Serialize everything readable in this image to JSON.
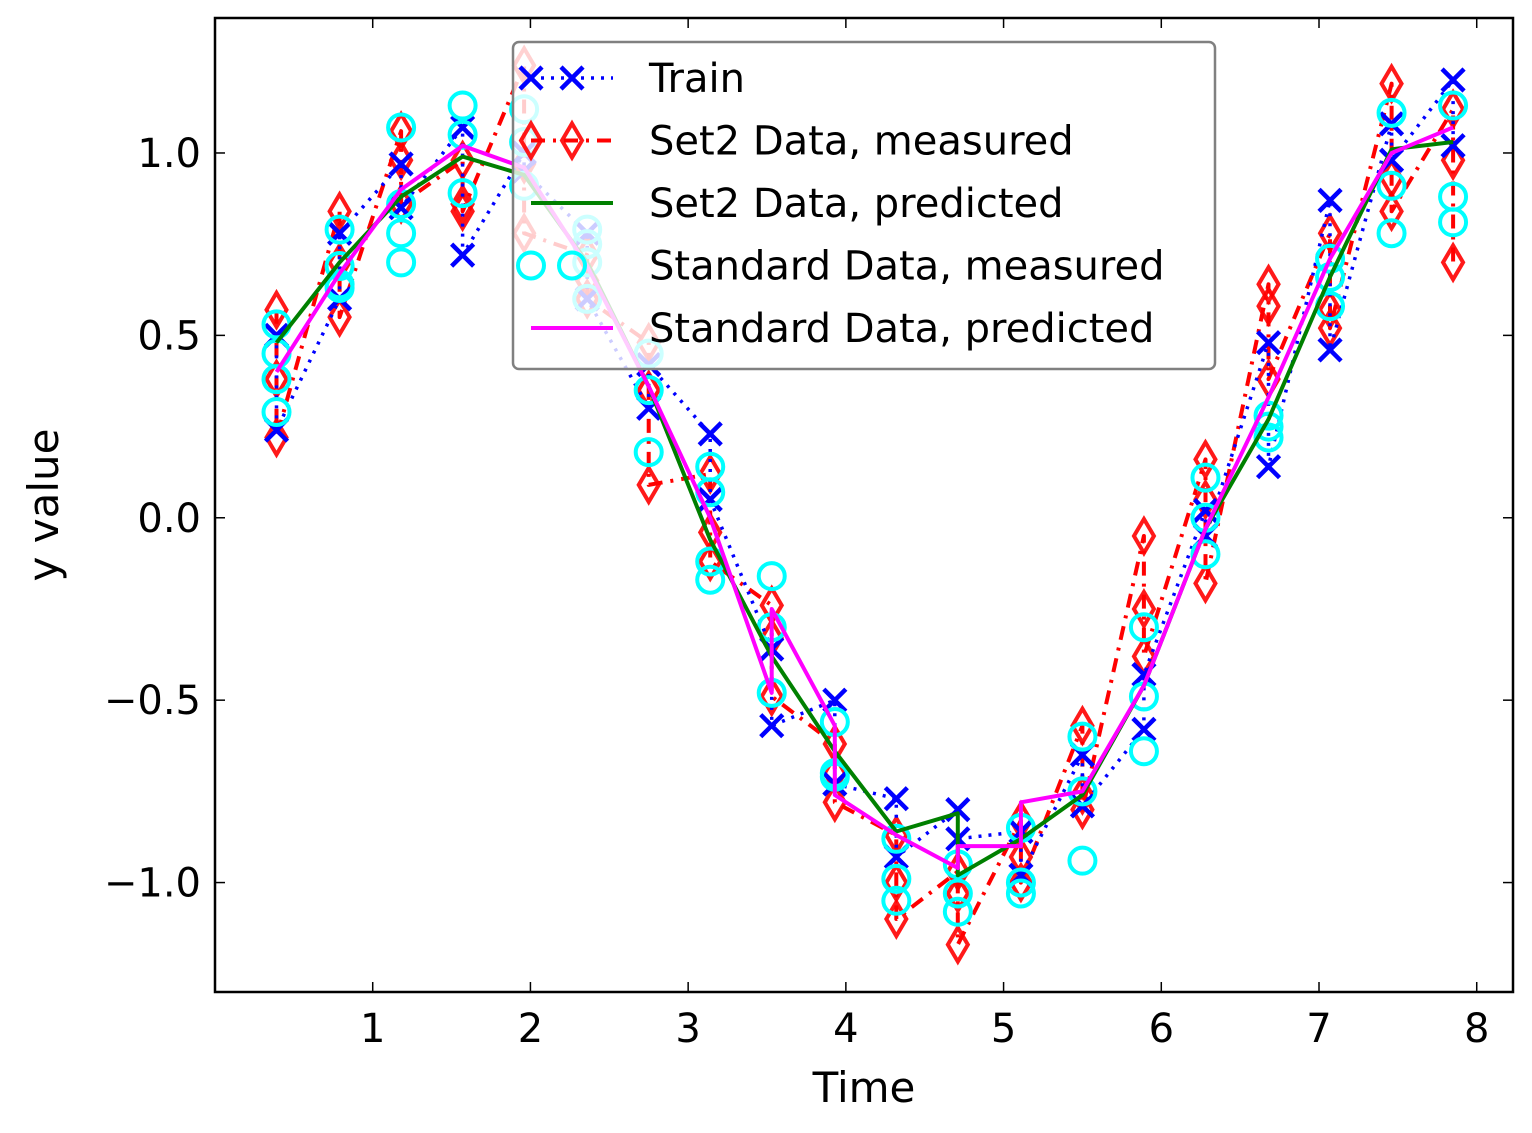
{
  "chart_data": {
    "type": "line",
    "xlabel": "Time",
    "ylabel": "y value",
    "xlim": [
      0.0,
      8.23
    ],
    "ylim": [
      -1.3,
      1.37
    ],
    "x_ticks": [
      1,
      2,
      3,
      4,
      5,
      6,
      7,
      8
    ],
    "x_tick_labels": [
      "1",
      "2",
      "3",
      "4",
      "5",
      "6",
      "7",
      "8"
    ],
    "y_ticks": [
      -1.0,
      -0.5,
      0.0,
      0.5,
      1.0
    ],
    "y_tick_labels": [
      "−1.0",
      "−0.5",
      "0.0",
      "0.5",
      "1.0"
    ],
    "grid": false,
    "legend_position": "top-center",
    "colors": {
      "train": "#0000ff",
      "set2_measured": "#ff0000",
      "set2_predicted": "#008000",
      "standard_measured": "#00ffff",
      "standard_predicted": "#ff00ff"
    },
    "legend": [
      {
        "label": "Train",
        "series": "train"
      },
      {
        "label": "Set2 Data, measured",
        "series": "set2_measured"
      },
      {
        "label": "Set2 Data, predicted",
        "series": "set2_predicted"
      },
      {
        "label": "Standard Data, measured",
        "series": "standard_measured"
      },
      {
        "label": "Standard Data, predicted",
        "series": "standard_predicted"
      }
    ],
    "series": [
      {
        "key": "train",
        "name": "Train",
        "style": "dotted-x",
        "x": [
          0.39,
          0.39,
          0.79,
          0.79,
          1.18,
          1.18,
          1.57,
          1.57,
          1.96,
          1.96,
          2.36,
          2.36,
          2.75,
          2.75,
          3.14,
          3.14,
          3.53,
          3.53,
          3.93,
          3.93,
          4.32,
          4.32,
          4.71,
          4.71,
          5.11,
          5.11,
          5.5,
          5.5,
          5.89,
          5.89,
          6.28,
          6.28,
          6.68,
          6.68,
          7.07,
          7.07,
          7.46,
          7.46,
          7.85,
          7.85
        ],
        "y": [
          0.5,
          0.24,
          0.6,
          0.78,
          0.97,
          0.85,
          1.07,
          0.72,
          1.0,
          0.95,
          0.78,
          0.6,
          0.3,
          0.42,
          0.23,
          0.05,
          -0.36,
          -0.57,
          -0.5,
          -0.73,
          -0.77,
          -0.93,
          -0.8,
          -0.88,
          -0.86,
          -0.98,
          -0.65,
          -0.79,
          -0.58,
          -0.43,
          0.02,
          -0.05,
          0.48,
          0.14,
          0.87,
          0.46,
          1.08,
          0.98,
          1.2,
          1.02
        ]
      },
      {
        "key": "set2_measured",
        "name": "Set2 Data, measured",
        "style": "dashdot-diamond",
        "x": [
          0.39,
          0.39,
          0.39,
          0.79,
          0.79,
          0.79,
          1.18,
          1.18,
          1.18,
          1.57,
          1.57,
          1.57,
          1.96,
          1.96,
          1.96,
          2.36,
          2.36,
          2.36,
          2.75,
          2.75,
          2.75,
          3.14,
          3.14,
          3.14,
          3.53,
          3.53,
          3.53,
          3.93,
          3.93,
          3.93,
          4.32,
          4.32,
          4.32,
          4.71,
          4.71,
          4.71,
          5.11,
          5.11,
          5.11,
          5.5,
          5.5,
          5.5,
          5.89,
          5.89,
          5.89,
          6.28,
          6.28,
          6.28,
          6.68,
          6.68,
          6.68,
          7.07,
          7.07,
          7.07,
          7.46,
          7.46,
          7.46,
          7.85,
          7.85,
          7.85
        ],
        "y": [
          0.57,
          0.38,
          0.22,
          0.84,
          0.7,
          0.55,
          1.06,
          0.98,
          0.86,
          0.98,
          0.86,
          0.84,
          1.24,
          0.97,
          0.78,
          0.72,
          0.65,
          0.6,
          0.48,
          0.35,
          0.09,
          0.12,
          -0.04,
          -0.12,
          -0.24,
          -0.33,
          -0.49,
          -0.62,
          -0.7,
          -0.78,
          -0.87,
          -1.0,
          -1.1,
          -0.97,
          -1.03,
          -1.17,
          -0.83,
          -0.93,
          -1.0,
          -0.57,
          -0.76,
          -0.8,
          -0.05,
          -0.25,
          -0.38,
          0.16,
          0.05,
          -0.18,
          0.64,
          0.58,
          0.38,
          0.78,
          0.57,
          0.52,
          1.19,
          0.93,
          0.84,
          1.12,
          0.98,
          0.7
        ]
      },
      {
        "key": "set2_predicted",
        "name": "Set2 Data, predicted",
        "style": "solid",
        "x": [
          0.39,
          0.79,
          1.18,
          1.57,
          1.96,
          2.36,
          2.75,
          3.14,
          3.53,
          3.93,
          4.32,
          4.71,
          4.71,
          5.11,
          5.5,
          5.89,
          6.28,
          6.68,
          7.07,
          7.46,
          7.85
        ],
        "y": [
          0.48,
          0.7,
          0.88,
          0.99,
          0.94,
          0.7,
          0.36,
          -0.06,
          -0.38,
          -0.64,
          -0.86,
          -0.81,
          -0.98,
          -0.88,
          -0.76,
          -0.46,
          -0.03,
          0.27,
          0.66,
          1.01,
          1.03
        ]
      },
      {
        "key": "standard_measured",
        "name": "Standard Data, measured",
        "style": "circle",
        "x": [
          0.39,
          0.39,
          0.39,
          0.39,
          0.79,
          0.79,
          0.79,
          0.79,
          1.18,
          1.18,
          1.18,
          1.18,
          1.57,
          1.57,
          1.57,
          1.96,
          1.96,
          1.96,
          2.36,
          2.36,
          2.36,
          2.36,
          2.75,
          2.75,
          2.75,
          3.14,
          3.14,
          3.14,
          3.14,
          3.53,
          3.53,
          3.53,
          3.93,
          3.93,
          3.93,
          4.32,
          4.32,
          4.32,
          4.71,
          4.71,
          4.71,
          5.11,
          5.11,
          5.11,
          5.5,
          5.5,
          5.5,
          5.89,
          5.89,
          5.89,
          6.28,
          6.28,
          6.28,
          6.68,
          6.68,
          6.68,
          7.07,
          7.07,
          7.07,
          7.46,
          7.46,
          7.46,
          7.85,
          7.85,
          7.85
        ],
        "y": [
          0.53,
          0.45,
          0.38,
          0.29,
          0.79,
          0.69,
          0.64,
          0.63,
          1.07,
          0.86,
          0.78,
          0.7,
          1.13,
          1.05,
          0.89,
          1.12,
          1.03,
          0.91,
          0.79,
          0.75,
          0.7,
          0.6,
          0.45,
          0.35,
          0.18,
          0.14,
          0.07,
          -0.12,
          -0.17,
          -0.16,
          -0.3,
          -0.48,
          -0.56,
          -0.7,
          -0.71,
          -0.88,
          -0.99,
          -1.05,
          -0.95,
          -1.03,
          -1.08,
          -0.85,
          -1.0,
          -1.03,
          -0.6,
          -0.75,
          -0.94,
          -0.3,
          -0.49,
          -0.64,
          0.11,
          0.0,
          -0.1,
          0.28,
          0.25,
          0.22,
          0.71,
          0.66,
          0.58,
          1.11,
          0.91,
          0.78,
          1.13,
          0.88,
          0.81
        ]
      },
      {
        "key": "standard_predicted",
        "name": "Standard Data, predicted",
        "style": "solid",
        "x": [
          0.39,
          0.79,
          1.18,
          1.57,
          1.96,
          2.36,
          2.75,
          3.14,
          3.53,
          3.53,
          3.93,
          3.93,
          4.32,
          4.71,
          4.71,
          5.11,
          5.11,
          5.5,
          5.89,
          6.28,
          6.68,
          7.07,
          7.46,
          7.85
        ],
        "y": [
          0.4,
          0.67,
          0.9,
          1.02,
          0.96,
          0.69,
          0.36,
          0.0,
          -0.48,
          -0.25,
          -0.57,
          -0.76,
          -0.87,
          -0.96,
          -0.9,
          -0.9,
          -0.78,
          -0.75,
          -0.46,
          -0.03,
          0.33,
          0.71,
          1.0,
          1.07
        ]
      }
    ]
  }
}
